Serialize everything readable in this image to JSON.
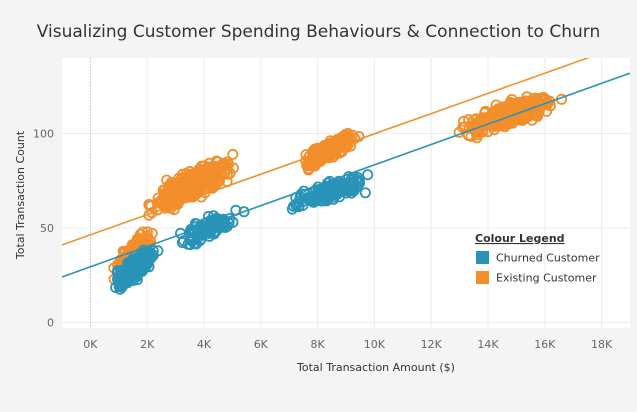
{
  "chart_data": {
    "type": "scatter",
    "title": "Visualizing Customer Spending Behaviours & Connection to Churn",
    "xlabel": "Total Transaction Amount ($)",
    "ylabel": "Total Transaction Count",
    "xlim": [
      -1000,
      19000
    ],
    "ylim": [
      -3,
      140
    ],
    "x_ticks": [
      {
        "value": 0,
        "label": "0K"
      },
      {
        "value": 2000,
        "label": "2K"
      },
      {
        "value": 4000,
        "label": "4K"
      },
      {
        "value": 6000,
        "label": "6K"
      },
      {
        "value": 8000,
        "label": "8K"
      },
      {
        "value": 10000,
        "label": "10K"
      },
      {
        "value": 12000,
        "label": "12K"
      },
      {
        "value": 14000,
        "label": "14K"
      },
      {
        "value": 16000,
        "label": "16K"
      },
      {
        "value": 18000,
        "label": "18K"
      }
    ],
    "y_ticks": [
      {
        "value": 0,
        "label": "0"
      },
      {
        "value": 50,
        "label": "50"
      },
      {
        "value": 100,
        "label": "100"
      }
    ],
    "grid": true,
    "marker": "hollow-circle",
    "legend": {
      "title": "Colour Legend",
      "placement": "right",
      "entries": [
        {
          "name": "Churned Customer",
          "color": "#2a93b8"
        },
        {
          "name": "Existing Customer",
          "color": "#f28e2b"
        }
      ]
    },
    "series": [
      {
        "name": "Existing Customer",
        "color": "#f28e2b",
        "trend_line": {
          "x": [
            -1000,
            19000
          ],
          "y": [
            41,
            148
          ]
        },
        "clusters": [
          {
            "x_range": [
              600,
              2500
            ],
            "y_range": [
              12,
              60
            ],
            "count": 180
          },
          {
            "x_range": [
              1500,
              5600
            ],
            "y_range": [
              45,
              100
            ],
            "count": 320
          },
          {
            "x_range": [
              7000,
              9800
            ],
            "y_range": [
              72,
              110
            ],
            "count": 200
          },
          {
            "x_range": [
              12500,
              17000
            ],
            "y_range": [
              90,
              130
            ],
            "count": 380
          }
        ]
      },
      {
        "name": "Churned Customer",
        "color": "#2a93b8",
        "trend_line": {
          "x": [
            -1000,
            19000
          ],
          "y": [
            24,
            132
          ]
        },
        "clusters": [
          {
            "x_range": [
              500,
              2600
            ],
            "y_range": [
              7,
              50
            ],
            "count": 260
          },
          {
            "x_range": [
              2500,
              5800
            ],
            "y_range": [
              30,
              70
            ],
            "count": 100
          },
          {
            "x_range": [
              6500,
              10300
            ],
            "y_range": [
              52,
              86
            ],
            "count": 170
          }
        ]
      }
    ]
  }
}
